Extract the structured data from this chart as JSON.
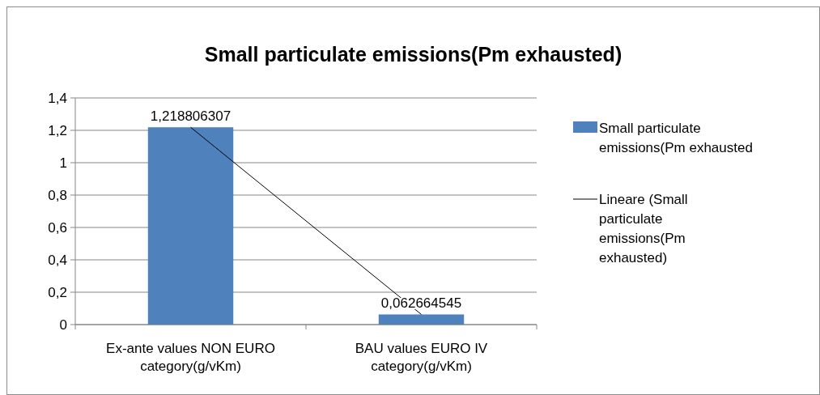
{
  "chart_data": {
    "type": "bar",
    "title": "Small particulate emissions(Pm exhausted)",
    "categories": [
      "Ex-ante values  NON EURO category(g/vKm)",
      "BAU values EURO IV category(g/vKm)"
    ],
    "series": [
      {
        "name": "Small particulate emissions(Pm exhausted",
        "type": "bar",
        "color": "#4f81bd",
        "values": [
          1.218806307,
          0.062664545
        ],
        "value_labels": [
          "1,218806307",
          "0,062664545"
        ]
      },
      {
        "name": "Lineare (Small particulate emissions(Pm exhausted)",
        "type": "line",
        "color": "#000000",
        "values": [
          1.218806307,
          0.062664545
        ]
      }
    ],
    "ylim": [
      0,
      1.4
    ],
    "yticks": [
      {
        "value": 0,
        "label": "0"
      },
      {
        "value": 0.2,
        "label": "0,2"
      },
      {
        "value": 0.4,
        "label": "0,4"
      },
      {
        "value": 0.6,
        "label": "0,6"
      },
      {
        "value": 0.8,
        "label": "0,8"
      },
      {
        "value": 1,
        "label": "1"
      },
      {
        "value": 1.2,
        "label": "1,2"
      },
      {
        "value": 1.4,
        "label": "1,4"
      }
    ],
    "grid": "y",
    "legend": "right"
  }
}
